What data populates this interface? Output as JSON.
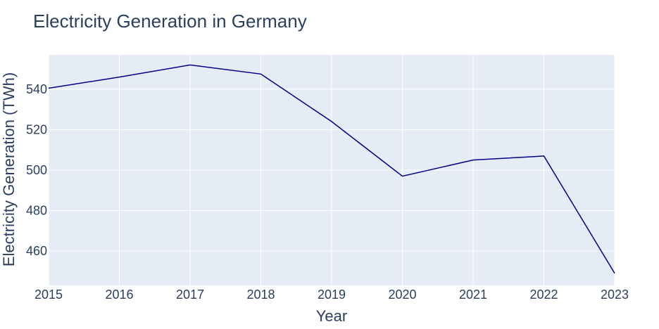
{
  "chart_data": {
    "type": "line",
    "title": "Electricity Generation in Germany",
    "xlabel": "Year",
    "ylabel": "Electricity Generation (TWh)",
    "x": [
      2015,
      2016,
      2017,
      2018,
      2019,
      2020,
      2021,
      2022,
      2023
    ],
    "series": [
      {
        "values": [
          540.5,
          546,
          552,
          547.5,
          524,
          497,
          505,
          507,
          449
        ]
      }
    ],
    "xlim": [
      2015,
      2023
    ],
    "ylim": [
      443,
      557
    ],
    "yticks": [
      460,
      480,
      500,
      520,
      540
    ],
    "xticks": [
      2015,
      2016,
      2017,
      2018,
      2019,
      2020,
      2021,
      2022,
      2023
    ],
    "grid": true,
    "colors": {
      "line": "#00008b",
      "plot_bg": "#e5ecf6",
      "grid": "#ffffff",
      "text": "#2a3f5f"
    }
  }
}
